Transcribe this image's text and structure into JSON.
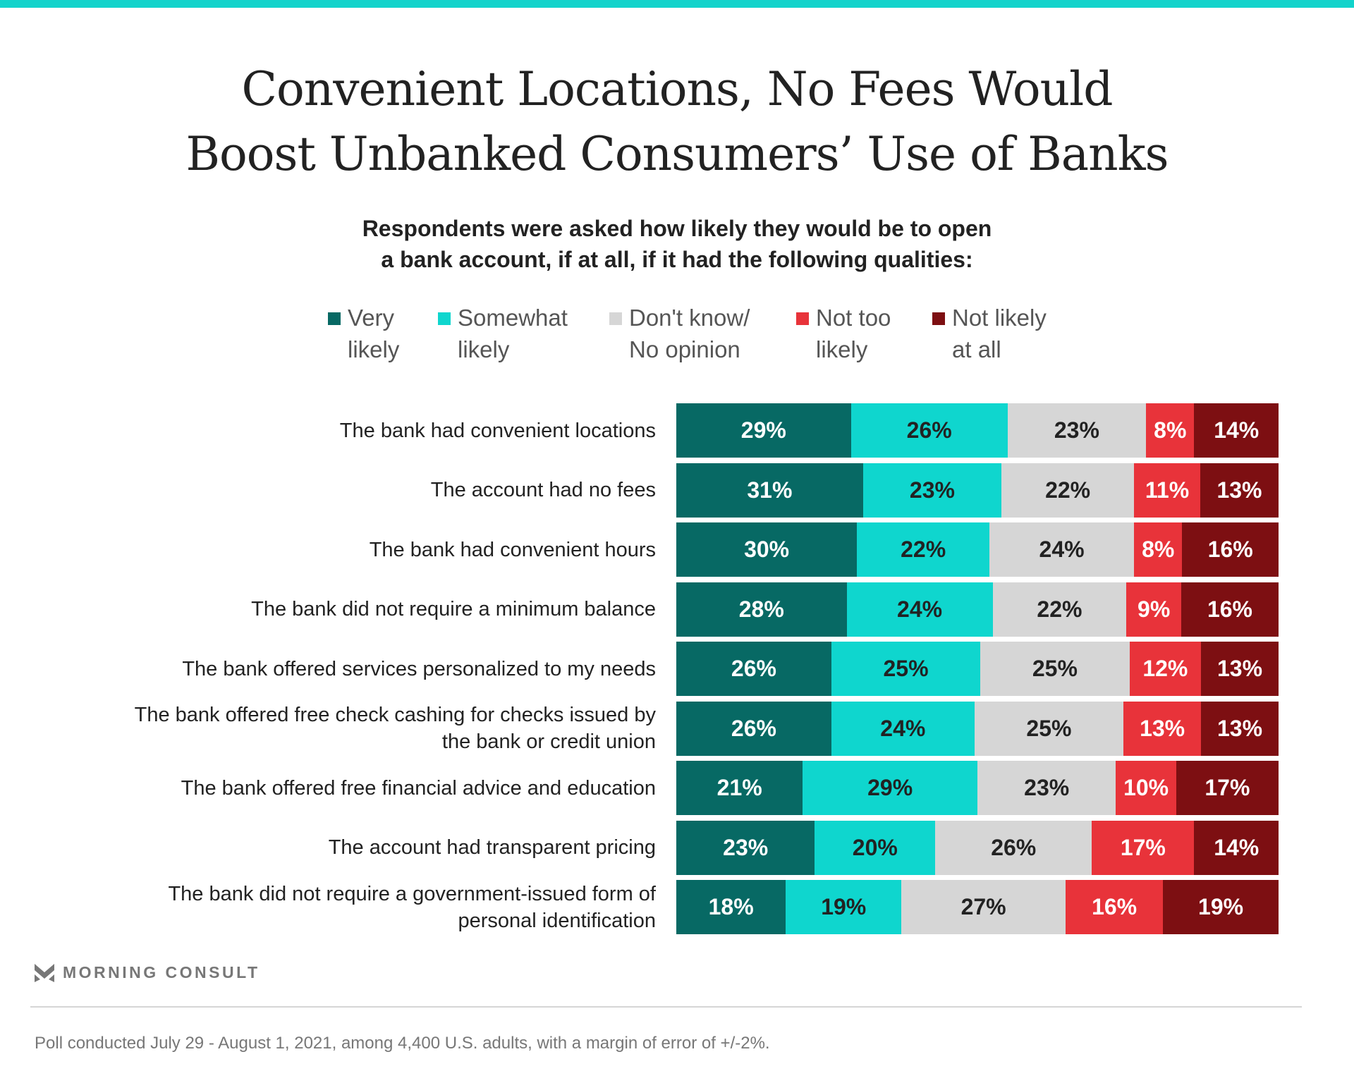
{
  "title_lines": [
    "Convenient Locations, No Fees Would",
    "Boost Unbanked Consumers’ Use of Banks"
  ],
  "subtitle_lines": [
    "Respondents were asked how likely they would be to open",
    "a bank account, if at all, if it had the following qualities:"
  ],
  "chart_data": {
    "type": "bar",
    "orientation": "horizontal-stacked-100",
    "title": "Convenient Locations, No Fees Would Boost Unbanked Consumers’ Use of Banks",
    "categories": [
      "The bank had convenient locations",
      "The account had no fees",
      "The bank had convenient hours",
      "The bank did not require a minimum balance",
      "The bank offered services personalized to my needs",
      "The bank offered free check cashing for checks issued by\nthe bank or credit union",
      "The bank offered free financial advice and education",
      "The account had transparent pricing",
      "The bank did not require a government-issued form of\npersonal identification"
    ],
    "series": [
      {
        "name": "Very\nlikely",
        "color": "#076964",
        "text_color": "#ffffff",
        "values": [
          29,
          31,
          30,
          28,
          26,
          26,
          21,
          23,
          18
        ]
      },
      {
        "name": "Somewhat\nlikely",
        "color": "#0fd6ce",
        "text_color": "#222222",
        "values": [
          26,
          23,
          22,
          24,
          25,
          24,
          29,
          20,
          19
        ]
      },
      {
        "name": "Don't know/\nNo opinion",
        "color": "#d6d6d6",
        "text_color": "#222222",
        "values": [
          23,
          22,
          24,
          22,
          25,
          25,
          23,
          26,
          27
        ]
      },
      {
        "name": "Not too\nlikely",
        "color": "#e8333a",
        "text_color": "#ffffff",
        "values": [
          8,
          11,
          8,
          9,
          12,
          13,
          10,
          17,
          16
        ]
      },
      {
        "name": "Not likely\nat all",
        "color": "#7d0f12",
        "text_color": "#ffffff",
        "values": [
          14,
          13,
          16,
          16,
          13,
          13,
          17,
          14,
          19
        ]
      }
    ],
    "value_suffix": "%",
    "legend_position": "top",
    "grid": false
  },
  "logo_text": "MORNING CONSULT",
  "footnote": "Poll conducted July 29 - August 1, 2021, among 4,400 U.S. adults, with a margin of error of +/-2%.",
  "colors": {
    "accent": "#12d3cb"
  }
}
